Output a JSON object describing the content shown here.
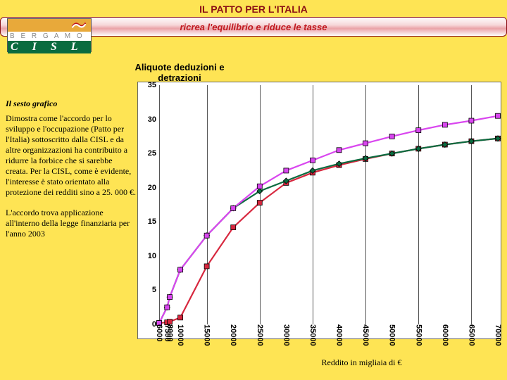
{
  "header": {
    "title": "IL PATTO PER L'ITALIA",
    "subtitle": "ricrea l'equilibrio e riduce le tasse",
    "title_color": "#8a0f14",
    "subtitle_color": "#c01920"
  },
  "logo": {
    "line1": "B E R G A M O",
    "line2": "C I S L"
  },
  "page_bg": "#fee454",
  "left_text": {
    "lead": "Il sesto grafico",
    "para1": "Dimostra come l'accordo per lo sviluppo e l'occupazione (Patto per l'Italia) sottoscritto dalla CISL e da altre organizzazioni ha contribuito a ridurre la forbice che si sarebbe creata. Per la CISL, come è evidente, l'interesse è stato orientato alla protezione dei redditi sino a 25. 000 €.",
    "para2": "L'accordo trova applicazione all'interno della legge finanziaria per l'anno 2003"
  },
  "chart": {
    "title": "Aliquote  deduzioni e detrazioni",
    "type": "line",
    "background_color": "#ffffff",
    "border_color": "#666666",
    "grid_color": "#555555",
    "ylim": [
      0,
      35
    ],
    "ytick_step": 5,
    "yticks": [
      0,
      5,
      10,
      15,
      20,
      25,
      30,
      35
    ],
    "x_values": [
      6000,
      7500,
      8000,
      10000,
      15000,
      20000,
      25000,
      30000,
      35000,
      40000,
      45000,
      50000,
      55000,
      60000,
      65000,
      70000
    ],
    "x_grid": [
      6000,
      15000,
      25000,
      35000,
      45000,
      55000,
      65000
    ],
    "x_axis_title": "Reddito in migliaia di €",
    "label_fontsize": 11,
    "series": [
      {
        "name": "series-a",
        "color": "#d7273e",
        "marker": "square",
        "marker_size": 7,
        "values": [
          0.2,
          0.3,
          0.4,
          1.0,
          8.5,
          14.2,
          17.8,
          20.7,
          22.2,
          23.3,
          24.2,
          25.0,
          25.7,
          26.3,
          26.8,
          27.2
        ]
      },
      {
        "name": "series-b",
        "color": "#0a6b3f",
        "marker": "diamond",
        "marker_size": 8,
        "values": [
          0.2,
          2.5,
          4.0,
          8.0,
          13.0,
          17.0,
          19.5,
          21.0,
          22.5,
          23.5,
          24.3,
          25.0,
          25.7,
          26.3,
          26.8,
          27.2
        ]
      },
      {
        "name": "series-c",
        "color": "#d946ef",
        "marker": "square",
        "marker_size": 7,
        "values": [
          0.2,
          2.5,
          4.0,
          8.0,
          13.0,
          17.0,
          20.2,
          22.5,
          24.0,
          25.5,
          26.5,
          27.5,
          28.4,
          29.2,
          29.8,
          30.5
        ]
      }
    ]
  }
}
